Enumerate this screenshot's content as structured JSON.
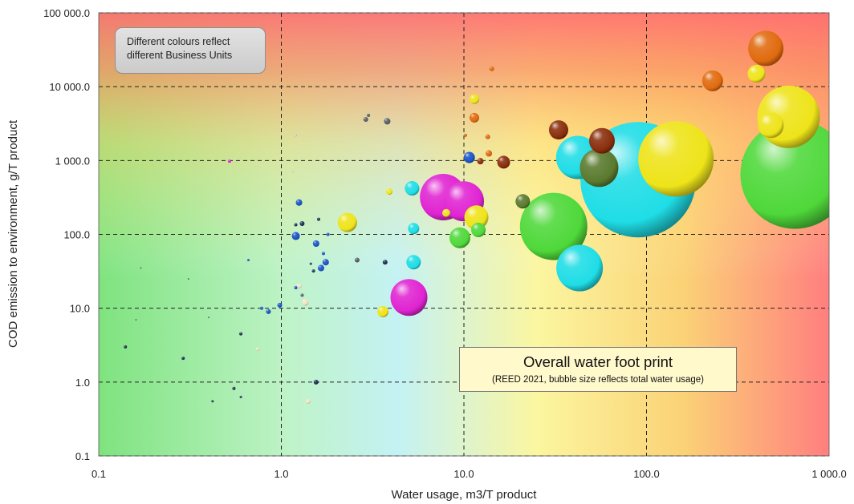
{
  "chart_data": {
    "type": "scatter",
    "subtype": "bubble",
    "title": "Overall water foot print",
    "subtitle": "(REED 2021, bubble size reflects total water usage)",
    "annotation": [
      "Different colours reflect",
      "different Business Units"
    ],
    "xlabel": "Water usage, m3/T product",
    "ylabel": "COD emission to environment, g/T product",
    "xscale": "log",
    "yscale": "log",
    "xlim": [
      0.1,
      1000
    ],
    "ylim": [
      0.1,
      100000
    ],
    "x_ticks": [
      0.1,
      1,
      10,
      100,
      1000
    ],
    "x_tick_labels": [
      "0.1",
      "1.0",
      "10.0",
      "100.0",
      "1 000.0"
    ],
    "y_ticks": [
      0.1,
      1,
      10,
      100,
      1000,
      10000,
      100000
    ],
    "y_tick_labels": [
      "0.1",
      "1.0",
      "10.0",
      "100.0",
      "1 000.0",
      "10 000.0",
      "100 000.0"
    ],
    "grid": "dashed",
    "background": "gradient green (bottom-left) to yellow to red (top-right)",
    "colors": {
      "cyan": "#1fdde6",
      "green": "#4fd83a",
      "yellow": "#eee41a",
      "magenta": "#e024d2",
      "orange": "#e06a0e",
      "darkred": "#8a2e0c",
      "olive": "#5a7a2e",
      "blue": "#1a55c8",
      "navy": "#1e2f55",
      "gray": "#5a5f66",
      "cream": "#f1e4c4",
      "lightgray": "#c8cdd2"
    },
    "points": [
      {
        "x": 90,
        "y": 550,
        "r": 72,
        "color": "cyan"
      },
      {
        "x": 650,
        "y": 650,
        "r": 68,
        "color": "green"
      },
      {
        "x": 145,
        "y": 1050,
        "r": 47,
        "color": "yellow"
      },
      {
        "x": 600,
        "y": 3900,
        "r": 39,
        "color": "yellow"
      },
      {
        "x": 31,
        "y": 128,
        "r": 42,
        "color": "green"
      },
      {
        "x": 7.7,
        "y": 320,
        "r": 29,
        "color": "magenta"
      },
      {
        "x": 10,
        "y": 280,
        "r": 25,
        "color": "magenta"
      },
      {
        "x": 5,
        "y": 14,
        "r": 23,
        "color": "magenta"
      },
      {
        "x": 42,
        "y": 1100,
        "r": 27,
        "color": "cyan"
      },
      {
        "x": 43,
        "y": 35,
        "r": 29,
        "color": "cyan"
      },
      {
        "x": 55,
        "y": 800,
        "r": 24,
        "color": "olive"
      },
      {
        "x": 450,
        "y": 33000,
        "r": 22,
        "color": "orange"
      },
      {
        "x": 480,
        "y": 3000,
        "r": 16,
        "color": "yellow"
      },
      {
        "x": 400,
        "y": 15000,
        "r": 11,
        "color": "yellow"
      },
      {
        "x": 230,
        "y": 12000,
        "r": 13,
        "color": "orange"
      },
      {
        "x": 57,
        "y": 1850,
        "r": 16,
        "color": "darkred"
      },
      {
        "x": 33,
        "y": 2600,
        "r": 12,
        "color": "darkred"
      },
      {
        "x": 11.7,
        "y": 170,
        "r": 15,
        "color": "yellow"
      },
      {
        "x": 9.5,
        "y": 90,
        "r": 13,
        "color": "green"
      },
      {
        "x": 12.0,
        "y": 115,
        "r": 9,
        "color": "green"
      },
      {
        "x": 21,
        "y": 280,
        "r": 9,
        "color": "olive"
      },
      {
        "x": 16.5,
        "y": 950,
        "r": 8,
        "color": "darkred"
      },
      {
        "x": 2.3,
        "y": 145,
        "r": 12,
        "color": "yellow"
      },
      {
        "x": 5.2,
        "y": 420,
        "r": 9,
        "color": "cyan"
      },
      {
        "x": 5.3,
        "y": 120,
        "r": 7,
        "color": "cyan"
      },
      {
        "x": 5.3,
        "y": 42,
        "r": 9,
        "color": "cyan"
      },
      {
        "x": 3.6,
        "y": 9.0,
        "r": 7,
        "color": "yellow"
      },
      {
        "x": 10.7,
        "y": 1100,
        "r": 7,
        "color": "blue"
      },
      {
        "x": 11.4,
        "y": 3800,
        "r": 6,
        "color": "orange"
      },
      {
        "x": 11.4,
        "y": 6800,
        "r": 6,
        "color": "yellow"
      },
      {
        "x": 13.7,
        "y": 1250,
        "r": 4,
        "color": "orange"
      },
      {
        "x": 12.3,
        "y": 980,
        "r": 4,
        "color": "darkred"
      },
      {
        "x": 13.5,
        "y": 2100,
        "r": 3,
        "color": "orange"
      },
      {
        "x": 14.2,
        "y": 17500,
        "r": 3,
        "color": "orange"
      },
      {
        "x": 10.2,
        "y": 2200,
        "r": 2,
        "color": "orange"
      },
      {
        "x": 3.9,
        "y": 380,
        "r": 4,
        "color": "yellow"
      },
      {
        "x": 8.0,
        "y": 195,
        "r": 5,
        "color": "yellow"
      },
      {
        "x": 3.8,
        "y": 3400,
        "r": 4,
        "color": "gray"
      },
      {
        "x": 2.9,
        "y": 3600,
        "r": 3,
        "color": "gray"
      },
      {
        "x": 3.0,
        "y": 4100,
        "r": 2,
        "color": "gray"
      },
      {
        "x": 2.6,
        "y": 45,
        "r": 3,
        "color": "gray"
      },
      {
        "x": 3.7,
        "y": 42,
        "r": 3,
        "color": "navy"
      },
      {
        "x": 1.2,
        "y": 95,
        "r": 5,
        "color": "blue"
      },
      {
        "x": 1.25,
        "y": 270,
        "r": 4,
        "color": "blue"
      },
      {
        "x": 1.55,
        "y": 75,
        "r": 4,
        "color": "blue"
      },
      {
        "x": 1.75,
        "y": 42,
        "r": 4,
        "color": "blue"
      },
      {
        "x": 1.65,
        "y": 35,
        "r": 4,
        "color": "blue"
      },
      {
        "x": 1.3,
        "y": 140,
        "r": 3,
        "color": "navy"
      },
      {
        "x": 1.2,
        "y": 135,
        "r": 2,
        "color": "navy"
      },
      {
        "x": 1.8,
        "y": 100,
        "r": 2,
        "color": "blue"
      },
      {
        "x": 1.7,
        "y": 55,
        "r": 2,
        "color": "blue"
      },
      {
        "x": 1.6,
        "y": 160,
        "r": 2,
        "color": "navy"
      },
      {
        "x": 1.5,
        "y": 32,
        "r": 2,
        "color": "navy"
      },
      {
        "x": 1.45,
        "y": 40,
        "r": 1.5,
        "color": "navy"
      },
      {
        "x": 1.2,
        "y": 19,
        "r": 2,
        "color": "blue"
      },
      {
        "x": 1.25,
        "y": 20,
        "r": 3,
        "color": "cream"
      },
      {
        "x": 1.35,
        "y": 12,
        "r": 4,
        "color": "cream"
      },
      {
        "x": 1.3,
        "y": 15,
        "r": 2,
        "color": "gray"
      },
      {
        "x": 0.85,
        "y": 9.0,
        "r": 3,
        "color": "blue"
      },
      {
        "x": 0.98,
        "y": 11,
        "r": 3,
        "color": "blue"
      },
      {
        "x": 0.78,
        "y": 10,
        "r": 2,
        "color": "blue"
      },
      {
        "x": 0.6,
        "y": 4.5,
        "r": 2,
        "color": "navy"
      },
      {
        "x": 0.74,
        "y": 2.8,
        "r": 2,
        "color": "cream"
      },
      {
        "x": 0.55,
        "y": 0.82,
        "r": 2,
        "color": "navy"
      },
      {
        "x": 0.6,
        "y": 0.63,
        "r": 1.5,
        "color": "navy"
      },
      {
        "x": 0.42,
        "y": 0.55,
        "r": 1.5,
        "color": "navy"
      },
      {
        "x": 0.29,
        "y": 2.1,
        "r": 2,
        "color": "navy"
      },
      {
        "x": 0.14,
        "y": 3.0,
        "r": 2,
        "color": "navy"
      },
      {
        "x": 1.55,
        "y": 1.0,
        "r": 3,
        "color": "navy"
      },
      {
        "x": 1.4,
        "y": 0.55,
        "r": 3,
        "color": "cream"
      },
      {
        "x": 0.52,
        "y": 980,
        "r": 2,
        "color": "magenta"
      },
      {
        "x": 1.2,
        "y": 2200,
        "r": 1.5,
        "color": "lightgray"
      },
      {
        "x": 1.15,
        "y": 700,
        "r": 1,
        "color": "lightgray"
      },
      {
        "x": 0.66,
        "y": 45,
        "r": 1.5,
        "color": "blue"
      },
      {
        "x": 0.31,
        "y": 25,
        "r": 1,
        "color": "gray"
      },
      {
        "x": 0.17,
        "y": 35,
        "r": 1,
        "color": "gray"
      },
      {
        "x": 0.16,
        "y": 7,
        "r": 1,
        "color": "gray"
      },
      {
        "x": 0.4,
        "y": 7.5,
        "r": 1,
        "color": "gray"
      }
    ]
  }
}
